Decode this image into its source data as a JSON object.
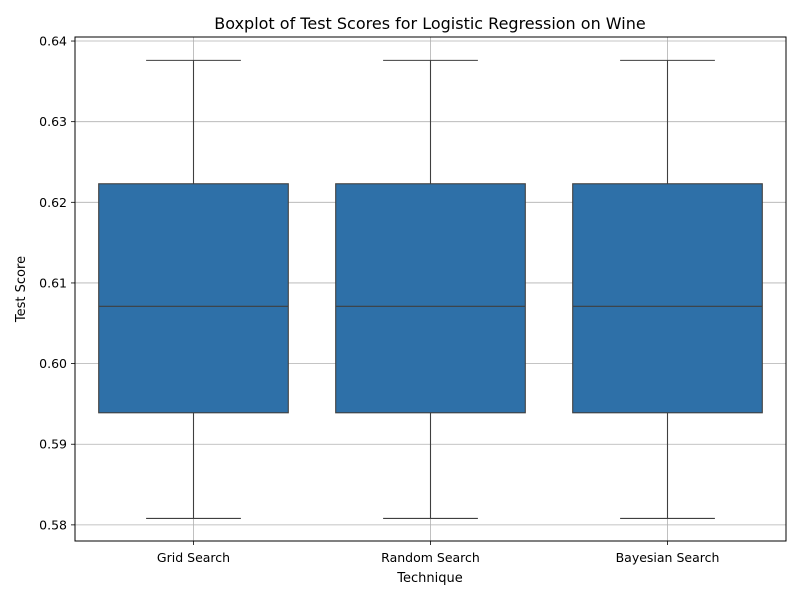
{
  "chart_data": {
    "type": "box",
    "title": "Boxplot of Test Scores for Logistic Regression on Wine",
    "xlabel": "Technique",
    "ylabel": "Test Score",
    "ylim": [
      0.578,
      0.6405
    ],
    "yticks": [
      0.58,
      0.59,
      0.6,
      0.61,
      0.62,
      0.63,
      0.64
    ],
    "ytick_labels": [
      "0.58",
      "0.59",
      "0.60",
      "0.61",
      "0.62",
      "0.63",
      "0.64"
    ],
    "grid": true,
    "box_color": "#2e70a8",
    "line_color": "#3f3f3f",
    "categories": [
      "Grid Search",
      "Random Search",
      "Bayesian Search"
    ],
    "boxes": [
      {
        "category": "Grid Search",
        "whisker_low": 0.5808,
        "q1": 0.5939,
        "median": 0.6071,
        "q3": 0.6223,
        "whisker_high": 0.6376
      },
      {
        "category": "Random Search",
        "whisker_low": 0.5808,
        "q1": 0.5939,
        "median": 0.6071,
        "q3": 0.6223,
        "whisker_high": 0.6376
      },
      {
        "category": "Bayesian Search",
        "whisker_low": 0.5808,
        "q1": 0.5939,
        "median": 0.6071,
        "q3": 0.6223,
        "whisker_high": 0.6376
      }
    ]
  }
}
